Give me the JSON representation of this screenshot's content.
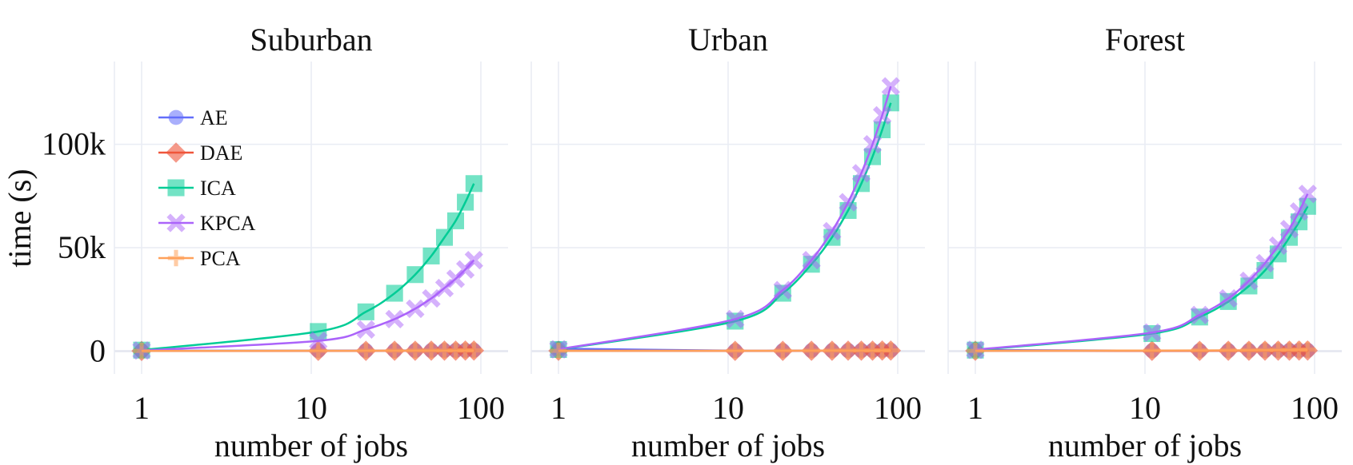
{
  "chart_data": {
    "type": "line",
    "x_scale": "log",
    "x_ticks": [
      1,
      10,
      100
    ],
    "x_tick_labels": [
      "1",
      "10",
      "100"
    ],
    "y_ticks": [
      0,
      50000,
      100000
    ],
    "y_tick_labels": [
      "0",
      "50k",
      "100k"
    ],
    "ylim": [
      -11000,
      140000
    ],
    "xlabel": "number of jobs",
    "ylabel": "time (s)",
    "grid": true,
    "legend_placement": "top-left of first panel",
    "x": [
      1,
      11,
      21,
      31,
      41,
      51,
      61,
      71,
      81,
      91
    ],
    "series_styles": [
      {
        "name": "AE",
        "color": "#636efa",
        "marker": "circle"
      },
      {
        "name": "DAE",
        "color": "#ef553b",
        "marker": "diamond"
      },
      {
        "name": "ICA",
        "color": "#00cc96",
        "marker": "square"
      },
      {
        "name": "KPCA",
        "color": "#ab63fa",
        "marker": "x"
      },
      {
        "name": "PCA",
        "color": "#ffa15a",
        "marker": "cross"
      }
    ],
    "panels": [
      {
        "title": "Suburban",
        "series": [
          {
            "name": "AE",
            "values": [
              200,
              280,
              300,
              320,
              340,
              360,
              380,
              400,
              420,
              440
            ]
          },
          {
            "name": "DAE",
            "values": [
              100,
              150,
              170,
              190,
              210,
              230,
              250,
              270,
              290,
              310
            ]
          },
          {
            "name": "ICA",
            "values": [
              500,
              9500,
              19000,
              28000,
              37000,
              46000,
              55000,
              63000,
              72000,
              81000
            ]
          },
          {
            "name": "KPCA",
            "values": [
              300,
              5000,
              10500,
              15500,
              20500,
              25500,
              30500,
              35000,
              39500,
              44000
            ]
          },
          {
            "name": "PCA",
            "values": [
              120,
              200,
              220,
              240,
              260,
              280,
              300,
              320,
              340,
              360
            ]
          }
        ]
      },
      {
        "title": "Urban",
        "series": [
          {
            "name": "AE",
            "values": [
              1200,
              250,
              280,
              300,
              320,
              340,
              360,
              380,
              400,
              420
            ]
          },
          {
            "name": "DAE",
            "values": [
              200,
              150,
              170,
              190,
              210,
              230,
              250,
              270,
              290,
              310
            ]
          },
          {
            "name": "ICA",
            "values": [
              800,
              14500,
              28000,
              42000,
              55000,
              68000,
              81000,
              94000,
              107000,
              120000
            ]
          },
          {
            "name": "KPCA",
            "values": [
              900,
              15500,
              29500,
              44000,
              58000,
              72000,
              86000,
              100000,
              114000,
              128000
            ]
          },
          {
            "name": "PCA",
            "values": [
              150,
              200,
              220,
              240,
              260,
              280,
              300,
              320,
              340,
              360
            ]
          }
        ]
      },
      {
        "title": "Forest",
        "series": [
          {
            "name": "AE",
            "values": [
              600,
              250,
              280,
              300,
              320,
              340,
              360,
              380,
              400,
              420
            ]
          },
          {
            "name": "DAE",
            "values": [
              200,
              150,
              170,
              190,
              210,
              230,
              250,
              270,
              290,
              310
            ]
          },
          {
            "name": "ICA",
            "values": [
              500,
              8500,
              16500,
              24000,
              31500,
              39000,
              47000,
              55000,
              62500,
              70000
            ]
          },
          {
            "name": "KPCA",
            "values": [
              700,
              9000,
              17500,
              25500,
              34000,
              42500,
              51000,
              59000,
              67500,
              76000
            ]
          },
          {
            "name": "PCA",
            "values": [
              150,
              300,
              350,
              400,
              450,
              500,
              550,
              600,
              650,
              700
            ]
          }
        ]
      }
    ]
  }
}
